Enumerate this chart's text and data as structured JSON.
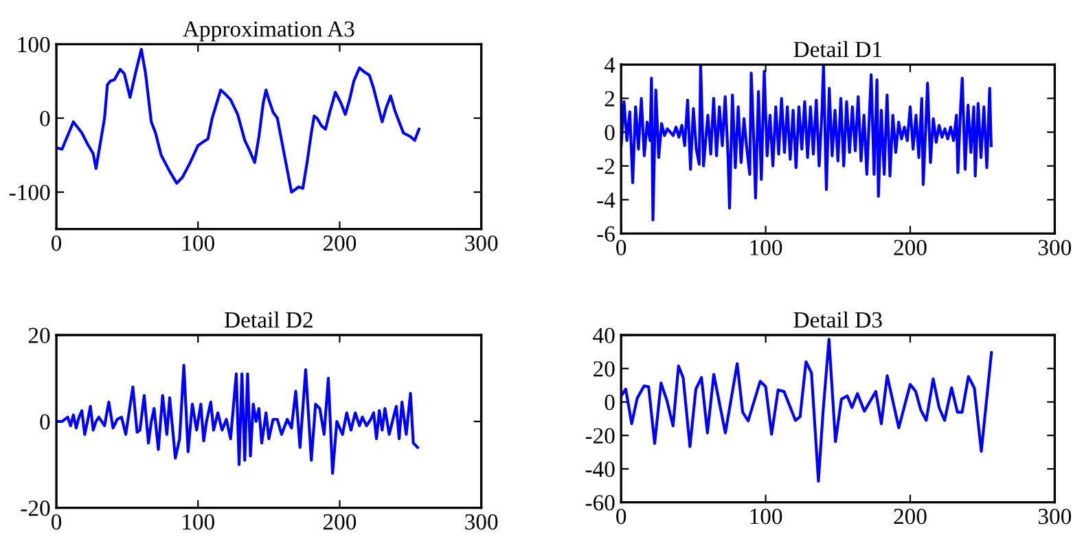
{
  "chart_data": [
    {
      "type": "line",
      "title": "Approximation A3",
      "xlim": [
        0,
        300
      ],
      "xticks": [
        0,
        100,
        200,
        300
      ],
      "ylim": [
        -150,
        100
      ],
      "yticks": [
        -100,
        0,
        100
      ],
      "grid": false,
      "legend": false,
      "series": [
        {
          "color": "#0000ff",
          "x": [
            0,
            4,
            12,
            18,
            22,
            26,
            28,
            34,
            36,
            38,
            41,
            45,
            48,
            52,
            56,
            60,
            63,
            67,
            70,
            74,
            80,
            85,
            89,
            94,
            100,
            103,
            107,
            110,
            116,
            119,
            123,
            128,
            133,
            136,
            140,
            143,
            146,
            148,
            150,
            153,
            156,
            159,
            163,
            166,
            169,
            171,
            174,
            177,
            180,
            182,
            184,
            187,
            190,
            193,
            197,
            201,
            204,
            207,
            210,
            214,
            217,
            221,
            224,
            230,
            233,
            236,
            239,
            242,
            245,
            250,
            253,
            256
          ],
          "values": [
            -40,
            -42,
            -5,
            -20,
            -35,
            -48,
            -68,
            0,
            45,
            50,
            52,
            66,
            60,
            28,
            62,
            93,
            60,
            -5,
            -20,
            -50,
            -72,
            -88,
            -80,
            -62,
            -37,
            -33,
            -28,
            0,
            38,
            33,
            25,
            5,
            -30,
            -42,
            -60,
            -25,
            20,
            38,
            25,
            8,
            0,
            -30,
            -70,
            -100,
            -96,
            -93,
            -95,
            -60,
            -20,
            3,
            0,
            -10,
            -15,
            8,
            35,
            20,
            5,
            25,
            50,
            68,
            63,
            58,
            40,
            -5,
            15,
            30,
            10,
            -5,
            -20,
            -25,
            -30,
            -15
          ]
        }
      ]
    },
    {
      "type": "line",
      "title": "Detail D1",
      "xlim": [
        0,
        300
      ],
      "xticks": [
        0,
        100,
        200,
        300
      ],
      "ylim": [
        -6,
        4
      ],
      "yticks": [
        -6,
        -4,
        -2,
        0,
        2,
        4
      ],
      "grid": false,
      "legend": false,
      "series": [
        {
          "color": "#0000ff",
          "x": [
            0,
            2,
            4,
            6,
            8,
            10,
            12,
            14,
            16,
            18,
            20,
            21,
            22,
            24,
            26,
            28,
            30,
            32,
            34,
            36,
            38,
            40,
            42,
            44,
            46,
            48,
            50,
            52,
            54,
            55,
            57,
            60,
            62,
            64,
            66,
            68,
            70,
            72,
            74,
            75,
            77,
            79,
            81,
            83,
            85,
            87,
            89,
            90,
            92,
            93,
            95,
            97,
            99,
            101,
            103,
            105,
            107,
            109,
            111,
            113,
            115,
            117,
            119,
            121,
            123,
            125,
            127,
            129,
            131,
            133,
            135,
            137,
            139,
            140,
            142,
            144,
            146,
            148,
            150,
            152,
            154,
            156,
            158,
            160,
            162,
            164,
            166,
            168,
            170,
            172,
            173,
            175,
            177,
            178,
            180,
            182,
            184,
            186,
            188,
            190,
            192,
            194,
            196,
            198,
            200,
            202,
            204,
            206,
            208,
            209,
            211,
            212,
            214,
            216,
            218,
            220,
            222,
            224,
            226,
            228,
            230,
            232,
            233,
            235,
            236,
            238,
            240,
            242,
            244,
            245,
            247,
            249,
            251,
            253,
            255,
            256
          ],
          "values": [
            -0.8,
            1.8,
            -0.5,
            1.2,
            -3,
            1.5,
            -1,
            2,
            -1.4,
            0.6,
            -0.5,
            3.2,
            -5.2,
            2.5,
            -1.5,
            0.5,
            -0.2,
            0.2,
            0,
            -0.2,
            0.3,
            -0.3,
            0.4,
            -0.8,
            1.9,
            -2.2,
            1.4,
            -1,
            -1.9,
            4,
            -2,
            1,
            -1.3,
            2,
            -1.4,
            1.5,
            -0.8,
            2.1,
            -1.5,
            -4.5,
            2.2,
            -2.1,
            1.5,
            -1.8,
            0.8,
            -1,
            -2.5,
            3.5,
            -1,
            -3.9,
            2.4,
            -2.8,
            3.6,
            -1.4,
            1,
            -2,
            1.5,
            -1.3,
            2,
            -1.2,
            1.5,
            -1.6,
            1.3,
            -2.1,
            1.5,
            -1,
            1.8,
            -1.5,
            1.5,
            -1.3,
            1.9,
            -2,
            1.3,
            4,
            -3.4,
            2.6,
            -1.4,
            1.3,
            -1.7,
            2,
            -2,
            1.8,
            -1.2,
            1.5,
            -1.1,
            2.1,
            -1.7,
            1,
            -2.5,
            1.5,
            3.4,
            -2.5,
            3.1,
            -3.8,
            1.3,
            -2.5,
            2.2,
            -2.6,
            1,
            -1.2,
            0.6,
            -0.4,
            0.3,
            -0.5,
            1.5,
            -1,
            1,
            -1.5,
            2,
            -3.1,
            0.8,
            2.9,
            -1.8,
            0.8,
            -0.6,
            0.4,
            -0.3,
            0.2,
            -0.4,
            0.3,
            -0.5,
            1,
            -2.4,
            1.7,
            3.2,
            -2.2,
            1.6,
            -1.2,
            1.5,
            -2.6,
            1.7,
            -1.5,
            1.5,
            -2.1,
            2.6,
            -0.8
          ]
        }
      ]
    },
    {
      "type": "line",
      "title": "Detail D2",
      "xlim": [
        0,
        300
      ],
      "xticks": [
        0,
        100,
        200,
        300
      ],
      "ylim": [
        -20,
        20
      ],
      "yticks": [
        -20,
        0,
        20
      ],
      "grid": false,
      "legend": false,
      "series": [
        {
          "color": "#0000ff",
          "x": [
            0,
            4,
            8,
            10,
            12,
            14,
            16,
            18,
            20,
            22,
            24,
            26,
            28,
            30,
            34,
            37,
            40,
            43,
            46,
            49,
            54,
            57,
            59,
            62,
            65,
            67,
            69,
            72,
            75,
            78,
            80,
            84,
            87,
            90,
            93,
            96,
            99,
            102,
            104,
            106,
            109,
            111,
            114,
            117,
            120,
            123,
            127,
            129,
            131,
            133,
            135,
            137,
            139,
            141,
            143,
            145,
            148,
            150,
            153,
            156,
            159,
            163,
            166,
            169,
            172,
            176,
            180,
            183,
            186,
            189,
            192,
            195,
            198,
            202,
            205,
            208,
            211,
            214,
            216,
            219,
            222,
            224,
            226,
            228,
            230,
            232,
            235,
            238,
            240,
            242,
            244,
            247,
            250,
            252,
            255
          ],
          "values": [
            0,
            0,
            1,
            -1,
            1.5,
            -1.5,
            1,
            2.5,
            -3,
            0,
            3.5,
            -2,
            0,
            1,
            -1,
            4.5,
            -1.5,
            0.5,
            1,
            -3,
            8,
            -2.5,
            -2,
            6,
            -5,
            0,
            3,
            -6.5,
            6,
            -3,
            5.5,
            -8.5,
            -4,
            13,
            -7,
            4,
            -2,
            4,
            -4.5,
            0,
            4.5,
            -2,
            2,
            -2,
            0.5,
            -4,
            11,
            -10,
            11,
            -9,
            11,
            -8,
            4,
            0,
            3,
            -5,
            2,
            -4,
            0.5,
            0.5,
            -3,
            0.5,
            -1.5,
            7,
            -6,
            12,
            -9,
            4,
            3,
            -3,
            10,
            -12,
            0,
            -3,
            2,
            -2,
            2,
            -1,
            1,
            -1,
            0.5,
            2,
            -4,
            2.5,
            -2,
            3,
            -3,
            1,
            3.5,
            -4,
            4.5,
            -3,
            6.5,
            -5,
            -6
          ]
        }
      ]
    },
    {
      "type": "line",
      "title": "Detail D3",
      "xlim": [
        0,
        300
      ],
      "xticks": [
        0,
        100,
        200,
        300
      ],
      "ylim": [
        -60,
        40
      ],
      "yticks": [
        -60,
        -40,
        -20,
        0,
        20,
        40
      ],
      "grid": false,
      "legend": false,
      "series": [
        {
          "color": "#0000ff",
          "x": [
            0,
            3.2,
            7.3,
            11.1,
            15.9,
            19,
            23.2,
            27.6,
            31.7,
            35.9,
            39.7,
            42.9,
            47.6,
            51.7,
            55.6,
            59.7,
            64.1,
            72.1,
            80.3,
            84.1,
            87.9,
            96.2,
            100,
            104.1,
            108.6,
            112.7,
            120.6,
            123.8,
            127.9,
            131.7,
            136.5,
            139.7,
            143.8,
            148.3,
            152.4,
            156.5,
            159.7,
            163.5,
            168.3,
            176.2,
            180,
            184.1,
            192.1,
            200,
            203.8,
            207.3,
            211.1,
            215.9,
            220,
            223.8,
            228.6,
            232.7,
            235.9,
            240.3,
            244.4,
            249.2,
            256.2
          ],
          "values": [
            3.6,
            7.7,
            -13,
            2.2,
            9.6,
            9.1,
            -24.8,
            11.3,
            0.8,
            -14.3,
            21.5,
            14.6,
            -26.7,
            7.7,
            14.6,
            -18.5,
            16.5,
            -18.5,
            22.9,
            -6.1,
            -11.3,
            12.4,
            9.1,
            -19.3,
            7.2,
            6.3,
            -11,
            -8.8,
            24,
            17.4,
            -47.4,
            -6,
            37.5,
            -23.7,
            1.7,
            3.6,
            -3.3,
            5,
            -5.5,
            6.3,
            -13,
            15.7,
            -15.4,
            10.5,
            6.3,
            -4.7,
            -11,
            13.8,
            -3.3,
            -11,
            8.5,
            -6.1,
            -6.1,
            15.2,
            8.3,
            -29.5,
            29.5
          ]
        }
      ]
    }
  ]
}
